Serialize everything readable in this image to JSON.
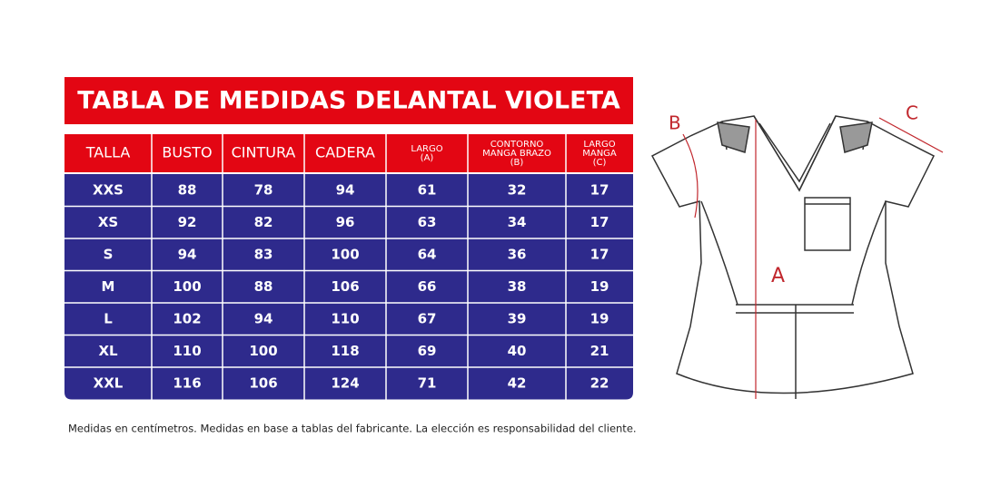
{
  "title": "TABLA DE MEDIDAS DELANTAL VIOLETA",
  "table": {
    "headers": [
      [
        "TALLA"
      ],
      [
        "BUSTO"
      ],
      [
        "CINTURA"
      ],
      [
        "CADERA"
      ],
      [
        "LARGO",
        "(A)"
      ],
      [
        "CONTORNO",
        "MANGA BRAZO",
        "(B)"
      ],
      [
        "LARGO",
        "MANGA",
        "(C)"
      ]
    ],
    "rows": [
      [
        "XXS",
        "88",
        "78",
        "94",
        "61",
        "32",
        "17"
      ],
      [
        "XS",
        "92",
        "82",
        "96",
        "63",
        "34",
        "17"
      ],
      [
        "S",
        "94",
        "83",
        "100",
        "64",
        "36",
        "17"
      ],
      [
        "M",
        "100",
        "88",
        "106",
        "66",
        "38",
        "19"
      ],
      [
        "L",
        "102",
        "94",
        "110",
        "67",
        "39",
        "19"
      ],
      [
        "XL",
        "110",
        "100",
        "118",
        "69",
        "40",
        "21"
      ],
      [
        "XXL",
        "116",
        "106",
        "124",
        "71",
        "42",
        "22"
      ]
    ]
  },
  "footnote": "Medidas en centímetros. Medidas en base a tablas del fabricante. La elección es responsabilidad del cliente.",
  "diagram": {
    "labels": [
      "A",
      "B",
      "C"
    ]
  }
}
